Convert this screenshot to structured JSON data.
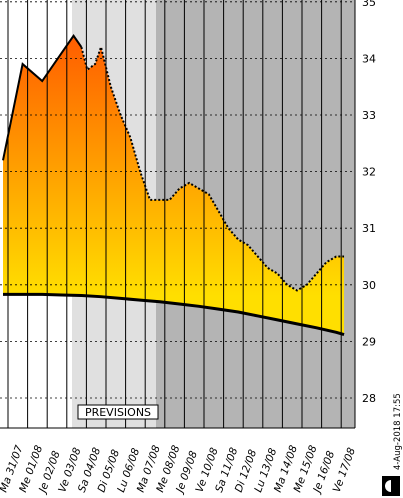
{
  "chart_data": {
    "type": "area",
    "categories": [
      "Ma 31/07",
      "Me 01/08",
      "Je 02/08",
      "Ve 03/08",
      "Sa 04/08",
      "Di 05/08",
      "Lu 06/08",
      "Ma 07/08",
      "Me 08/08",
      "Je 09/08",
      "Ve 10/08",
      "Sa 11/08",
      "Di 12/08",
      "Lu 13/08",
      "Ma 14/08",
      "Me 15/08",
      "Je 16/08",
      "Ve 17/08"
    ],
    "y_ticks": [
      28,
      29,
      30,
      31,
      32,
      33,
      34,
      35
    ],
    "ylim": [
      27.5,
      35
    ],
    "forecast_label": "PREVISIONS",
    "timestamp": "4-Aug-2018 17:55",
    "series": [
      {
        "style": "observed-solid-then-dotted",
        "x": [
          0,
          1,
          2,
          3,
          3.6,
          4,
          4.3,
          4.7,
          5,
          5.5,
          6,
          6.5,
          7,
          7.5,
          8,
          8.5,
          9,
          9.5,
          10,
          10.5,
          11,
          11.5,
          12,
          12.5,
          13,
          13.5,
          14,
          14.5,
          15,
          15.5,
          16,
          16.5,
          17,
          17.4
        ],
        "values": [
          32.2,
          33.9,
          33.6,
          34.1,
          34.4,
          34.2,
          33.8,
          33.9,
          34.2,
          33.5,
          33.0,
          32.6,
          32.0,
          31.5,
          31.5,
          31.5,
          31.7,
          31.8,
          31.7,
          31.6,
          31.3,
          31.0,
          30.8,
          30.7,
          30.5,
          30.3,
          30.2,
          30.0,
          29.9,
          30.0,
          30.2,
          30.4,
          30.5,
          30.5
        ]
      },
      {
        "style": "baseline",
        "x": [
          0,
          1,
          2,
          3,
          4,
          5,
          6,
          7,
          8,
          9,
          10,
          11,
          12,
          13,
          14,
          15,
          16,
          17,
          17.4
        ],
        "values": [
          29.83,
          29.83,
          29.83,
          29.82,
          29.81,
          29.79,
          29.76,
          29.73,
          29.7,
          29.66,
          29.62,
          29.57,
          29.52,
          29.45,
          29.38,
          29.31,
          29.24,
          29.16,
          29.12
        ]
      }
    ],
    "colors": {
      "background_past": "#ffffff",
      "background_forecast_near": "#e0e0e0",
      "background_forecast_far": "#b4b4b4",
      "fill_top": "#ff5a00",
      "fill_bottom": "#ffdf00",
      "baseline": "#000000",
      "grid": "#000000"
    },
    "grid": true
  }
}
